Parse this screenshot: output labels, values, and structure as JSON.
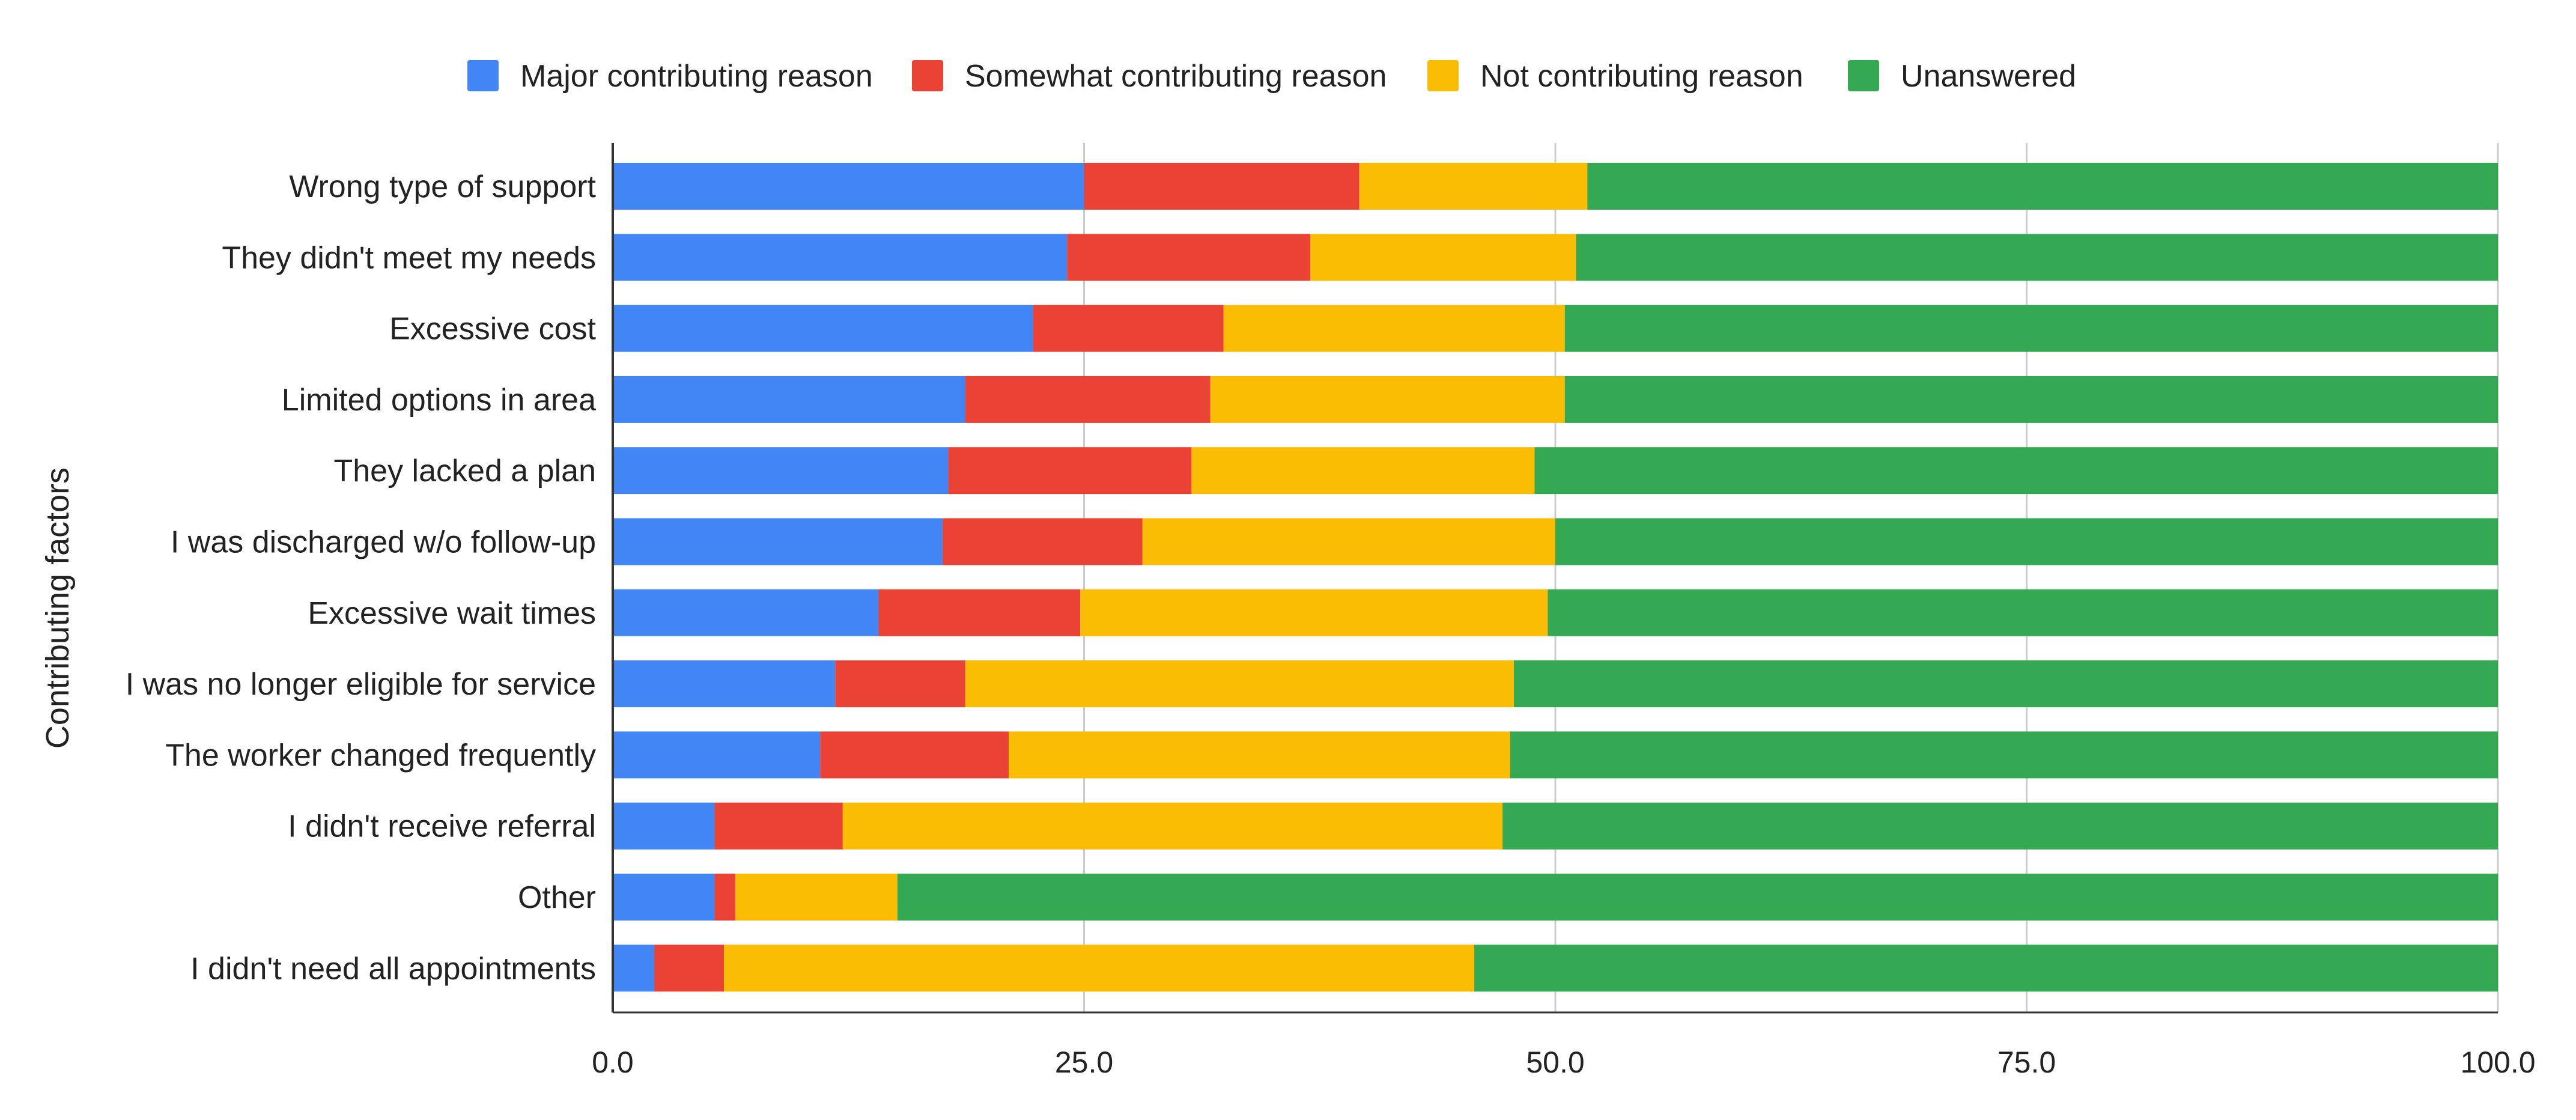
{
  "chart_data": {
    "type": "bar",
    "orientation": "horizontal",
    "stacked": true,
    "title": "",
    "xlabel": "",
    "ylabel": "Contributing factors",
    "xlim": [
      0,
      100
    ],
    "x_ticks": [
      "0.0",
      "25.0",
      "50.0",
      "75.0",
      "100.0"
    ],
    "x_tick_values": [
      0,
      25,
      50,
      75,
      100
    ],
    "grid": "vertical",
    "legend_position": "top",
    "categories": [
      "Wrong type of support",
      "They didn't meet my needs",
      "Excessive cost",
      "Limited options in area",
      "They lacked a plan",
      "I was discharged w/o follow-up",
      "Excessive wait times",
      "I was no longer eligible for service",
      "The worker changed frequently",
      "I didn't receive referral",
      "Other",
      "I didn't need all appointments"
    ],
    "series": [
      {
        "name": "Major contributing reason",
        "color": "#4285F4",
        "values": [
          25.0,
          24.1,
          22.3,
          18.7,
          17.8,
          17.5,
          14.1,
          11.8,
          11.0,
          5.4,
          5.4,
          2.2
        ]
      },
      {
        "name": "Somewhat contributing reason",
        "color": "#EA4335",
        "values": [
          14.6,
          12.9,
          10.1,
          13.0,
          12.9,
          10.6,
          10.7,
          6.9,
          10.0,
          6.8,
          1.1,
          3.7
        ]
      },
      {
        "name": "Not contributing reason",
        "color": "#FBBC04",
        "values": [
          12.1,
          14.1,
          18.1,
          18.8,
          18.2,
          21.9,
          24.8,
          29.1,
          26.6,
          35.0,
          8.6,
          39.8
        ]
      },
      {
        "name": "Unanswered",
        "color": "#34A853",
        "values": [
          48.3,
          48.9,
          49.5,
          49.5,
          51.1,
          50.0,
          50.4,
          52.2,
          52.4,
          52.8,
          84.9,
          54.3
        ]
      }
    ]
  }
}
